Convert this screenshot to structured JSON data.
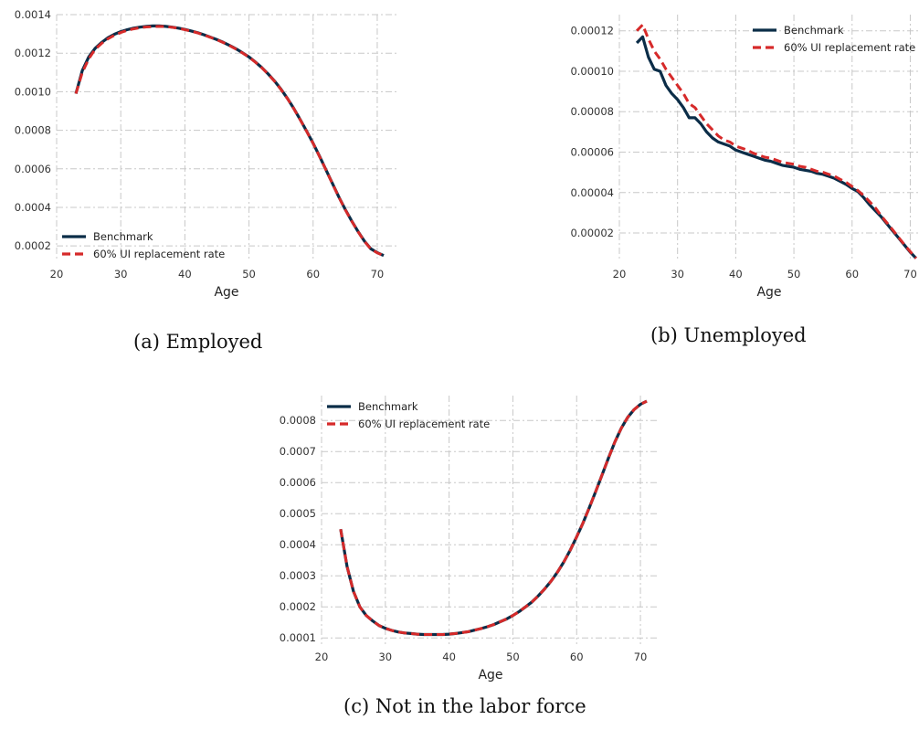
{
  "charts": [
    {
      "caption": "(a) Employed",
      "chart_data": {
        "type": "line",
        "xlabel": "Age",
        "xlim": [
          20,
          73
        ],
        "ylim": [
          0.00012,
          0.0014
        ],
        "xticks": [
          20,
          30,
          40,
          50,
          60,
          70
        ],
        "xtick_labels": [
          "20",
          "30",
          "40",
          "50",
          "60",
          "70"
        ],
        "yticks": [
          0.0002,
          0.0004,
          0.0006,
          0.0008,
          0.001,
          0.0012,
          0.0014
        ],
        "ytick_labels": [
          "0.0002",
          "0.0004",
          "0.0006",
          "0.0008",
          "0.0010",
          "0.0012",
          "0.0014"
        ],
        "grid": true,
        "legend_position": "lower-left",
        "x": [
          23,
          24,
          25,
          26,
          27,
          28,
          29,
          30,
          31,
          32,
          33,
          34,
          35,
          36,
          37,
          38,
          39,
          40,
          41,
          42,
          43,
          44,
          45,
          46,
          47,
          48,
          49,
          50,
          51,
          52,
          53,
          54,
          55,
          56,
          57,
          58,
          59,
          60,
          61,
          62,
          63,
          64,
          65,
          66,
          67,
          68,
          69,
          70,
          71
        ],
        "series": [
          {
            "name": "Benchmark",
            "color": "#0b2d48",
            "style": "solid",
            "values": [
              0.00099,
              0.00111,
              0.00118,
              0.001225,
              0.001255,
              0.00128,
              0.001298,
              0.001312,
              0.001322,
              0.00133,
              0.001335,
              0.001339,
              0.001341,
              0.001341,
              0.001339,
              0.001335,
              0.00133,
              0.001323,
              0.001315,
              0.001306,
              0.001295,
              0.001283,
              0.00127,
              0.001256,
              0.00124,
              0.001222,
              0.001202,
              0.00118,
              0.001154,
              0.001125,
              0.001092,
              0.001055,
              0.001012,
              0.000965,
              0.000912,
              0.000855,
              0.000795,
              0.000732,
              0.000665,
              0.000595,
              0.000525,
              0.000455,
              0.00039,
              0.00033,
              0.000275,
              0.000225,
              0.000185,
              0.000165,
              0.00015
            ]
          },
          {
            "name": "60% UI replacement rate",
            "color": "#d62a2a",
            "style": "dashed",
            "values": [
              0.00099,
              0.0011,
              0.00117,
              0.00122,
              0.00125,
              0.001275,
              0.001293,
              0.001307,
              0.001318,
              0.001326,
              0.001332,
              0.001336,
              0.001338,
              0.001339,
              0.001338,
              0.001334,
              0.001329,
              0.001322,
              0.001314,
              0.001305,
              0.001294,
              0.001282,
              0.001269,
              0.001255,
              0.001239,
              0.001221,
              0.001201,
              0.001179,
              0.001153,
              0.001124,
              0.001091,
              0.001054,
              0.001011,
              0.000964,
              0.000911,
              0.000854,
              0.000794,
              0.000731,
              0.000664,
              0.000594,
              0.000524,
              0.000454,
              0.000389,
              0.000329,
              0.000274,
              0.000224,
              0.000184,
              0.000164,
              0.00015
            ]
          }
        ]
      }
    },
    {
      "caption": "(b) Unemployed",
      "chart_data": {
        "type": "line",
        "xlabel": "Age",
        "xlim": [
          20,
          71.5
        ],
        "ylim": [
          6e-06,
          0.000128
        ],
        "xticks": [
          20,
          30,
          40,
          50,
          60,
          70
        ],
        "xtick_labels": [
          "20",
          "30",
          "40",
          "50",
          "60",
          "70"
        ],
        "yticks": [
          2e-05,
          4e-05,
          6e-05,
          8e-05,
          0.0001,
          0.00012
        ],
        "ytick_labels": [
          "0.00002",
          "0.00004",
          "0.00006",
          "0.00008",
          "0.00010",
          "0.00012"
        ],
        "grid": true,
        "legend_position": "top-right",
        "x": [
          23,
          24,
          25,
          26,
          27,
          28,
          29,
          30,
          31,
          32,
          33,
          34,
          35,
          36,
          37,
          38,
          39,
          40,
          41,
          42,
          43,
          44,
          45,
          46,
          47,
          48,
          49,
          50,
          51,
          52,
          53,
          54,
          55,
          56,
          57,
          58,
          59,
          60,
          61,
          62,
          63,
          64,
          65,
          66,
          67,
          68,
          69,
          70,
          71
        ],
        "series": [
          {
            "name": "Benchmark",
            "color": "#0b2d48",
            "style": "solid",
            "values": [
              0.000114,
              0.000117,
              0.000107,
              0.000101,
              0.0001,
              9.3e-05,
              8.9e-05,
              8.6e-05,
              8.2e-05,
              7.7e-05,
              7.7e-05,
              7.4e-05,
              7e-05,
              6.7e-05,
              6.5e-05,
              6.4e-05,
              6.3e-05,
              6.1e-05,
              6e-05,
              5.9e-05,
              5.8e-05,
              5.7e-05,
              5.6e-05,
              5.55e-05,
              5.45e-05,
              5.35e-05,
              5.3e-05,
              5.25e-05,
              5.15e-05,
              5.1e-05,
              5.05e-05,
              4.95e-05,
              4.9e-05,
              4.8e-05,
              4.7e-05,
              4.55e-05,
              4.4e-05,
              4.2e-05,
              4.05e-05,
              3.75e-05,
              3.4e-05,
              3.1e-05,
              2.8e-05,
              2.45e-05,
              2.1e-05,
              1.75e-05,
              1.4e-05,
              1.05e-05,
              7.5e-06
            ]
          },
          {
            "name": "60% UI replacement rate",
            "color": "#d62a2a",
            "style": "dashed",
            "values": [
              0.00012,
              0.000123,
              0.000116,
              0.00011,
              0.000106,
              0.000101,
              9.7e-05,
              9.3e-05,
              8.9e-05,
              8.4e-05,
              8.2e-05,
              7.8e-05,
              7.4e-05,
              7.1e-05,
              6.8e-05,
              6.6e-05,
              6.5e-05,
              6.3e-05,
              6.2e-05,
              6.1e-05,
              5.95e-05,
              5.85e-05,
              5.75e-05,
              5.7e-05,
              5.6e-05,
              5.5e-05,
              5.45e-05,
              5.4e-05,
              5.3e-05,
              5.25e-05,
              5.15e-05,
              5.05e-05,
              5e-05,
              4.9e-05,
              4.8e-05,
              4.65e-05,
              4.5e-05,
              4.3e-05,
              4.1e-05,
              3.85e-05,
              3.55e-05,
              3.25e-05,
              2.85e-05,
              2.5e-05,
              2.15e-05,
              1.78e-05,
              1.42e-05,
              1.08e-05,
              7.5e-06
            ]
          }
        ]
      }
    },
    {
      "caption": "(c) Not in the labor force",
      "chart_data": {
        "type": "line",
        "xlabel": "Age",
        "xlim": [
          20,
          73
        ],
        "ylim": [
          8e-05,
          0.00088
        ],
        "xticks": [
          20,
          30,
          40,
          50,
          60,
          70
        ],
        "xtick_labels": [
          "20",
          "30",
          "40",
          "50",
          "60",
          "70"
        ],
        "yticks": [
          0.0001,
          0.0002,
          0.0003,
          0.0004,
          0.0005,
          0.0006,
          0.0007,
          0.0008
        ],
        "ytick_labels": [
          "0.0001",
          "0.0002",
          "0.0003",
          "0.0004",
          "0.0005",
          "0.0006",
          "0.0007",
          "0.0008"
        ],
        "grid": true,
        "legend_position": "top-left",
        "x": [
          23,
          24,
          25,
          26,
          27,
          28,
          29,
          30,
          31,
          32,
          33,
          34,
          35,
          36,
          37,
          38,
          39,
          40,
          41,
          42,
          43,
          44,
          45,
          46,
          47,
          48,
          49,
          50,
          51,
          52,
          53,
          54,
          55,
          56,
          57,
          58,
          59,
          60,
          61,
          62,
          63,
          64,
          65,
          66,
          67,
          68,
          69,
          70,
          71
        ],
        "series": [
          {
            "name": "Benchmark",
            "color": "#0b2d48",
            "style": "solid",
            "values": [
              0.00045,
              0.00033,
              0.00025,
              0.0002,
              0.000172,
              0.000155,
              0.00014,
              0.000131,
              0.000124,
              0.000119,
              0.000116,
              0.000114,
              0.000112,
              0.000111,
              0.000111,
              0.000111,
              0.000111,
              0.000112,
              0.000114,
              0.000117,
              0.00012,
              0.000125,
              0.00013,
              0.000136,
              0.000143,
              0.000152,
              0.000161,
              0.000172,
              0.000185,
              0.0002,
              0.000216,
              0.000236,
              0.000258,
              0.000283,
              0.000312,
              0.000345,
              0.000383,
              0.000425,
              0.00047,
              0.00052,
              0.000572,
              0.000626,
              0.00068,
              0.000731,
              0.000775,
              0.00081,
              0.000835,
              0.000852,
              0.000862
            ]
          },
          {
            "name": "60% UI replacement rate",
            "color": "#d62a2a",
            "style": "dashed",
            "values": [
              0.00045,
              0.00033,
              0.00025,
              0.0002,
              0.000172,
              0.000155,
              0.00014,
              0.000131,
              0.000124,
              0.000119,
              0.000116,
              0.000114,
              0.000112,
              0.000111,
              0.000111,
              0.000111,
              0.000111,
              0.000112,
              0.000114,
              0.000117,
              0.00012,
              0.000125,
              0.00013,
              0.000136,
              0.000143,
              0.000152,
              0.000161,
              0.000172,
              0.000185,
              0.0002,
              0.000216,
              0.000236,
              0.000258,
              0.000283,
              0.000312,
              0.000345,
              0.000383,
              0.000425,
              0.00047,
              0.00052,
              0.000572,
              0.000626,
              0.00068,
              0.000731,
              0.000775,
              0.00081,
              0.000835,
              0.000852,
              0.000862
            ]
          }
        ]
      }
    }
  ]
}
